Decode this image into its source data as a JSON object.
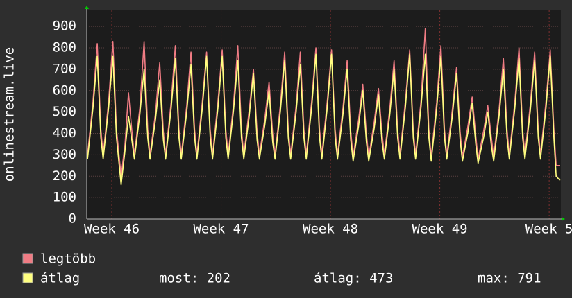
{
  "chart_data": {
    "type": "line",
    "y_label": "onlinestream.live",
    "xlim": [
      0,
      30.35
    ],
    "xticks": [
      {
        "value": 1.6,
        "label": "Week 46"
      },
      {
        "value": 8.6,
        "label": "Week 47"
      },
      {
        "value": 15.6,
        "label": "Week 48"
      },
      {
        "value": 22.6,
        "label": "Week 49"
      },
      {
        "value": 29.6,
        "label": "Week 5"
      }
    ],
    "ylim": [
      0,
      975
    ],
    "yticks": [
      0,
      100,
      200,
      300,
      400,
      500,
      600,
      700,
      800,
      900
    ],
    "grid": true,
    "x": [
      0.05,
      0.4,
      0.67,
      0.9,
      1.05,
      1.4,
      1.67,
      1.9,
      2.2,
      2.45,
      2.67,
      2.9,
      3.05,
      3.4,
      3.67,
      3.9,
      4.05,
      4.4,
      4.67,
      4.9,
      5.05,
      5.4,
      5.67,
      5.9,
      6.05,
      6.4,
      6.67,
      6.9,
      7.05,
      7.4,
      7.67,
      7.9,
      8.05,
      8.4,
      8.67,
      8.9,
      9.05,
      9.4,
      9.67,
      9.9,
      10.05,
      10.4,
      10.67,
      10.9,
      11.05,
      11.4,
      11.67,
      11.9,
      12.05,
      12.4,
      12.67,
      12.9,
      13.05,
      13.4,
      13.67,
      13.9,
      14.05,
      14.4,
      14.67,
      14.9,
      15.05,
      15.4,
      15.67,
      15.9,
      16.05,
      16.4,
      16.67,
      16.9,
      17.05,
      17.4,
      17.67,
      17.9,
      18.05,
      18.4,
      18.67,
      18.9,
      19.05,
      19.4,
      19.67,
      19.9,
      20.05,
      20.4,
      20.67,
      20.9,
      21.05,
      21.4,
      21.67,
      21.9,
      22.05,
      22.4,
      22.67,
      22.9,
      23.05,
      23.4,
      23.67,
      23.9,
      24.05,
      24.4,
      24.67,
      24.9,
      25.05,
      25.4,
      25.67,
      25.9,
      26.05,
      26.4,
      26.67,
      26.9,
      27.05,
      27.4,
      27.67,
      27.9,
      28.05,
      28.4,
      28.67,
      28.9,
      29.05,
      29.4,
      29.67,
      29.9,
      30.05,
      30.3
    ],
    "series": [
      {
        "name": "legtöbb",
        "color": "#f07c84",
        "values": [
          300,
          550,
          820,
          420,
          300,
          550,
          830,
          420,
          200,
          350,
          590,
          400,
          300,
          520,
          830,
          420,
          300,
          495,
          730,
          410,
          300,
          545,
          810,
          420,
          300,
          530,
          780,
          420,
          300,
          550,
          780,
          420,
          300,
          550,
          790,
          420,
          300,
          540,
          810,
          420,
          300,
          510,
          700,
          410,
          300,
          470,
          640,
          400,
          300,
          540,
          780,
          420,
          300,
          530,
          780,
          420,
          300,
          555,
          800,
          420,
          300,
          555,
          790,
          420,
          300,
          520,
          740,
          410,
          290,
          465,
          630,
          400,
          290,
          455,
          610,
          400,
          300,
          520,
          740,
          420,
          300,
          555,
          790,
          420,
          300,
          555,
          890,
          420,
          290,
          545,
          810,
          420,
          300,
          510,
          710,
          410,
          290,
          435,
          570,
          390,
          280,
          410,
          530,
          380,
          290,
          515,
          750,
          420,
          300,
          545,
          800,
          420,
          300,
          540,
          780,
          420,
          300,
          550,
          790,
          420,
          250,
          250
        ]
      },
      {
        "name": "átlag",
        "color": "#ffff80",
        "values": [
          280,
          520,
          760,
          380,
          280,
          520,
          760,
          380,
          160,
          320,
          480,
          360,
          280,
          490,
          700,
          380,
          280,
          465,
          650,
          370,
          280,
          515,
          750,
          380,
          280,
          500,
          720,
          380,
          280,
          520,
          760,
          380,
          280,
          520,
          760,
          380,
          280,
          510,
          740,
          380,
          280,
          480,
          680,
          370,
          280,
          440,
          600,
          360,
          280,
          510,
          740,
          380,
          280,
          500,
          720,
          380,
          280,
          525,
          770,
          380,
          280,
          525,
          770,
          380,
          280,
          490,
          700,
          370,
          270,
          435,
          600,
          360,
          270,
          425,
          580,
          360,
          280,
          490,
          700,
          380,
          280,
          525,
          770,
          380,
          280,
          525,
          770,
          380,
          270,
          515,
          760,
          380,
          280,
          480,
          680,
          370,
          270,
          405,
          540,
          350,
          260,
          380,
          500,
          340,
          270,
          485,
          700,
          380,
          280,
          515,
          750,
          380,
          280,
          510,
          740,
          380,
          280,
          520,
          760,
          380,
          200,
          180
        ]
      }
    ],
    "stats": [
      "most: 202",
      "átlag: 473",
      "max: 791"
    ]
  }
}
